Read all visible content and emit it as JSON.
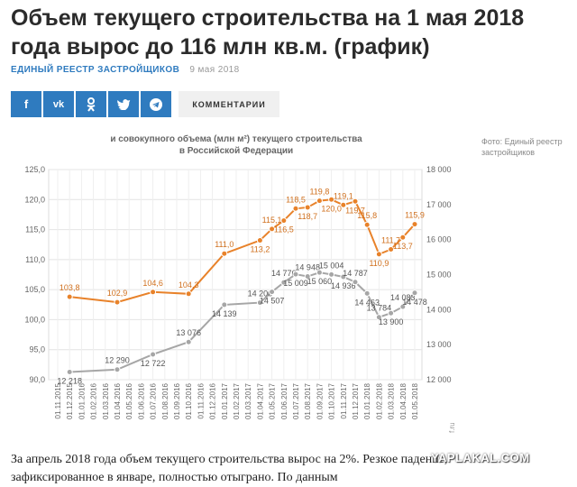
{
  "article": {
    "title": "Объем текущего строительства на 1 мая 2018 года вырос до 116 млн кв.м. (график)",
    "source": "Единый реестр застройщиков",
    "date": "9 мая 2018",
    "photo_credit": "Фото: Единый реестр застройщиков",
    "body": "За апрель 2018 года объем текущего строительства вырос на 2%. Резкое падение, зафиксированное в январе, полностью отыграно. По данным"
  },
  "share": {
    "buttons": [
      {
        "name": "facebook",
        "label": "f"
      },
      {
        "name": "vk",
        "label": "vk"
      },
      {
        "name": "odnoklassniki",
        "label": "ok"
      },
      {
        "name": "twitter",
        "label": "tw"
      },
      {
        "name": "telegram",
        "label": "tg"
      }
    ],
    "comments_label": "Комментарии"
  },
  "watermark": "YAPLAKAL.COM",
  "chart_data": {
    "type": "line",
    "title": "и совокупного объема (млн м²) текущего строительства",
    "subtitle": "в Российской Федерации",
    "x": [
      "01.11.2015",
      "01.12.2015",
      "01.01.2016",
      "01.02.2016",
      "01.03.2016",
      "01.04.2016",
      "01.05.2016",
      "01.06.2016",
      "01.07.2016",
      "01.08.2016",
      "01.09.2016",
      "01.10.2016",
      "01.11.2016",
      "01.12.2016",
      "01.01.2017",
      "01.02.2017",
      "01.03.2017",
      "01.04.2017",
      "01.05.2017",
      "01.06.2017",
      "01.07.2017",
      "01.08.2017",
      "01.09.2017",
      "01.10.2017",
      "01.11.2017",
      "01.12.2017",
      "01.01.2018",
      "01.02.2018",
      "01.03.2018",
      "01.04.2018",
      "01.05.2018"
    ],
    "y_left": {
      "min": 90,
      "max": 125,
      "ticks": [
        "125,0",
        "120,0",
        "115,0",
        "110,0",
        "105,0",
        "100,0",
        "95,0",
        "90,0"
      ],
      "tick_values": [
        125,
        120,
        115,
        110,
        105,
        100,
        95,
        90
      ]
    },
    "y_right": {
      "min": 12000,
      "max": 18000,
      "ticks": [
        "18 000",
        "17 000",
        "16 000",
        "15 000",
        "14 000",
        "13 000",
        "12 000"
      ],
      "tick_values": [
        18000,
        17000,
        16000,
        15000,
        14000,
        13000,
        12000
      ]
    },
    "series": [
      {
        "color": "#e8822a",
        "axis": "left",
        "points": [
          {
            "x": "01.12.2015",
            "y": 103.8,
            "label": "103,8"
          },
          {
            "x": "01.04.2016",
            "y": 102.9,
            "label": "102,9"
          },
          {
            "x": "01.07.2016",
            "y": 104.6,
            "label": "104,6"
          },
          {
            "x": "01.10.2016",
            "y": 104.3,
            "label": "104,3"
          },
          {
            "x": "01.01.2017",
            "y": 111.0,
            "label": "111,0"
          },
          {
            "x": "01.04.2017",
            "y": 113.2,
            "label": "113,2"
          },
          {
            "x": "01.05.2017",
            "y": 115.1,
            "label": "115,1"
          },
          {
            "x": "01.06.2017",
            "y": 116.5,
            "label": "116,5"
          },
          {
            "x": "01.07.2017",
            "y": 118.5,
            "label": "118,5"
          },
          {
            "x": "01.08.2017",
            "y": 118.7,
            "label": "118,7"
          },
          {
            "x": "01.09.2017",
            "y": 119.8,
            "label": "119,8"
          },
          {
            "x": "01.10.2017",
            "y": 120.0,
            "label": "120,0"
          },
          {
            "x": "01.11.2017",
            "y": 119.1,
            "label": "119,1"
          },
          {
            "x": "01.12.2017",
            "y": 119.7,
            "label": "119,7"
          },
          {
            "x": "01.01.2018",
            "y": 115.8,
            "label": "115,8"
          },
          {
            "x": "01.02.2018",
            "y": 110.9,
            "label": "110,9"
          },
          {
            "x": "01.03.2018",
            "y": 111.7,
            "label": "111,7"
          },
          {
            "x": "01.04.2018",
            "y": 113.7,
            "label": "113,7"
          },
          {
            "x": "01.05.2018",
            "y": 115.9,
            "label": "115,9"
          }
        ]
      },
      {
        "color": "#a6a6a6",
        "axis": "right",
        "points": [
          {
            "x": "01.12.2015",
            "y": 12218,
            "label": "12 218"
          },
          {
            "x": "01.04.2016",
            "y": 12290,
            "label": "12 290"
          },
          {
            "x": "01.07.2016",
            "y": 12722,
            "label": "12 722"
          },
          {
            "x": "01.10.2016",
            "y": 13076,
            "label": "13 076"
          },
          {
            "x": "01.01.2017",
            "y": 14139,
            "label": "14 139"
          },
          {
            "x": "01.04.2017",
            "y": 14200,
            "label": "14 200"
          },
          {
            "x": "01.05.2017",
            "y": 14507,
            "label": "14 507"
          },
          {
            "x": "01.06.2017",
            "y": 14776,
            "label": "14 776"
          },
          {
            "x": "01.07.2017",
            "y": 15009,
            "label": "15 009"
          },
          {
            "x": "01.08.2017",
            "y": 14948,
            "label": "14 948"
          },
          {
            "x": "01.09.2017",
            "y": 15060,
            "label": "15 060"
          },
          {
            "x": "01.10.2017",
            "y": 15004,
            "label": "15 004"
          },
          {
            "x": "01.11.2017",
            "y": 14936,
            "label": "14 936"
          },
          {
            "x": "01.12.2017",
            "y": 14787,
            "label": "14 787"
          },
          {
            "x": "01.01.2018",
            "y": 14463,
            "label": "14 463"
          },
          {
            "x": "01.02.2018",
            "y": 13784,
            "label": "13 784"
          },
          {
            "x": "01.03.2018",
            "y": 13900,
            "label": "13 900"
          },
          {
            "x": "01.04.2018",
            "y": 14083,
            "label": "14 083"
          },
          {
            "x": "01.05.2018",
            "y": 14478,
            "label": "14 478"
          }
        ]
      }
    ],
    "watermark": "f.ru",
    "grid": true
  }
}
